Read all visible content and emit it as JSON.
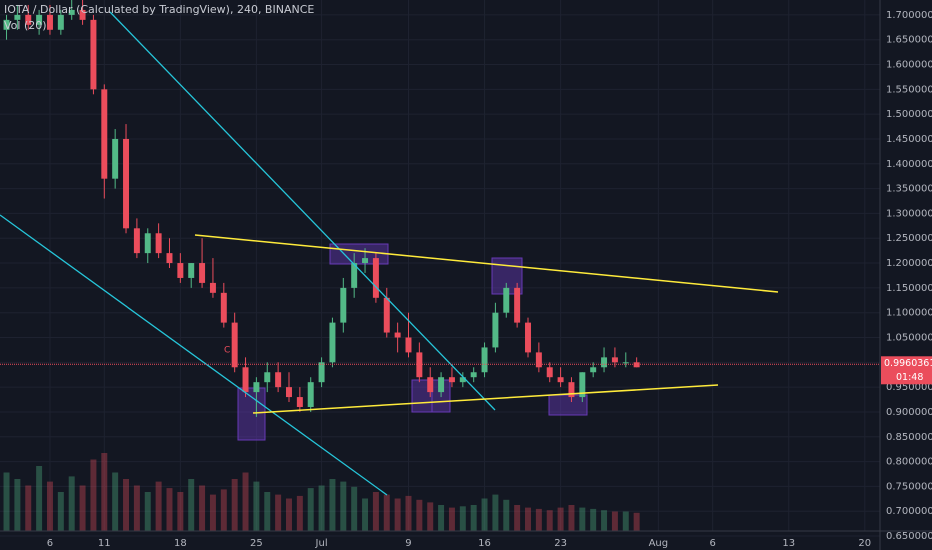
{
  "chart_data": {
    "type": "candlestick",
    "title": "IOTA / Dollar (Calculated by TradingView), 240, BINANCE",
    "volume_title": "Vol (20)",
    "up_color": "#53b987",
    "down_color": "#eb4d5c",
    "grid": true,
    "xlim": [
      0.4,
      81.4
    ],
    "ylim": [
      0.64,
      1.73
    ],
    "volume_ylim": [
      0,
      100
    ],
    "xticks": [
      {
        "value": 5,
        "label": "6"
      },
      {
        "value": 10,
        "label": "11"
      },
      {
        "value": 17,
        "label": "18"
      },
      {
        "value": 24,
        "label": "25"
      },
      {
        "value": 30,
        "label": "Jul"
      },
      {
        "value": 38,
        "label": "9"
      },
      {
        "value": 45,
        "label": "16"
      },
      {
        "value": 52,
        "label": "23"
      },
      {
        "value": 61,
        "label": "Aug"
      },
      {
        "value": 66,
        "label": "6"
      },
      {
        "value": 73,
        "label": "13"
      },
      {
        "value": 80,
        "label": "20"
      }
    ],
    "yticks": [
      {
        "value": 0.65,
        "label": "0.65000000"
      },
      {
        "value": 0.7,
        "label": "0.70000000"
      },
      {
        "value": 0.75,
        "label": "0.75000000"
      },
      {
        "value": 0.8,
        "label": "0.80000000"
      },
      {
        "value": 0.85,
        "label": "0.85000000"
      },
      {
        "value": 0.9,
        "label": "0.90000000"
      },
      {
        "value": 0.95,
        "label": "0.95000000"
      },
      {
        "value": 1.0,
        "label": "1.00000000"
      },
      {
        "value": 1.05,
        "label": "1.05000000"
      },
      {
        "value": 1.1,
        "label": "1.10000000"
      },
      {
        "value": 1.15,
        "label": "1.15000000"
      },
      {
        "value": 1.2,
        "label": "1.20000000"
      },
      {
        "value": 1.25,
        "label": "1.25000000"
      },
      {
        "value": 1.3,
        "label": "1.30000000"
      },
      {
        "value": 1.35,
        "label": "1.35000000"
      },
      {
        "value": 1.4,
        "label": "1.40000000"
      },
      {
        "value": 1.45,
        "label": "1.45000000"
      },
      {
        "value": 1.5,
        "label": "1.50000000"
      },
      {
        "value": 1.55,
        "label": "1.55000000"
      },
      {
        "value": 1.6,
        "label": "1.60000000"
      },
      {
        "value": 1.65,
        "label": "1.65000000"
      },
      {
        "value": 1.7,
        "label": "1.70000000"
      }
    ],
    "x": [
      1,
      2,
      3,
      4,
      5,
      6,
      7,
      8,
      9,
      10,
      11,
      12,
      13,
      14,
      15,
      16,
      17,
      18,
      19,
      20,
      21,
      22,
      23,
      24,
      25,
      26,
      27,
      28,
      29,
      30,
      31,
      32,
      33,
      34,
      35,
      36,
      37,
      38,
      39,
      40,
      41,
      42,
      43,
      44,
      45,
      46,
      47,
      48,
      49,
      50,
      51,
      52,
      53,
      54,
      55,
      56,
      57,
      58,
      59
    ],
    "open": [
      1.67,
      1.69,
      1.7,
      1.68,
      1.7,
      1.67,
      1.7,
      1.71,
      1.69,
      1.55,
      1.37,
      1.45,
      1.27,
      1.22,
      1.26,
      1.22,
      1.2,
      1.17,
      1.2,
      1.16,
      1.14,
      1.08,
      0.99,
      0.94,
      0.96,
      0.98,
      0.95,
      0.93,
      0.91,
      0.96,
      1.0,
      1.08,
      1.15,
      1.2,
      1.21,
      1.13,
      1.06,
      1.05,
      1.02,
      0.97,
      0.94,
      0.97,
      0.96,
      0.97,
      0.98,
      1.03,
      1.1,
      1.15,
      1.08,
      1.02,
      0.99,
      0.97,
      0.96,
      0.93,
      0.98,
      0.99,
      1.01,
      1.0,
      1.0
    ],
    "high": [
      1.7,
      1.72,
      1.72,
      1.71,
      1.72,
      1.71,
      1.73,
      1.73,
      1.7,
      1.56,
      1.47,
      1.48,
      1.29,
      1.27,
      1.28,
      1.25,
      1.22,
      1.2,
      1.25,
      1.21,
      1.16,
      1.1,
      1.01,
      0.97,
      1.0,
      1.0,
      0.98,
      0.95,
      0.97,
      1.01,
      1.09,
      1.17,
      1.22,
      1.23,
      1.22,
      1.15,
      1.08,
      1.1,
      1.04,
      0.99,
      0.98,
      0.99,
      0.98,
      0.99,
      1.04,
      1.12,
      1.16,
      1.16,
      1.09,
      1.04,
      1.0,
      0.99,
      0.97,
      0.98,
      1.0,
      1.03,
      1.03,
      1.02,
      1.01
    ],
    "low": [
      1.65,
      1.67,
      1.67,
      1.66,
      1.66,
      1.66,
      1.69,
      1.68,
      1.54,
      1.33,
      1.35,
      1.26,
      1.21,
      1.2,
      1.21,
      1.19,
      1.16,
      1.15,
      1.15,
      1.13,
      1.07,
      0.98,
      0.93,
      0.89,
      0.94,
      0.94,
      0.92,
      0.9,
      0.9,
      0.95,
      0.99,
      1.06,
      1.13,
      1.18,
      1.12,
      1.05,
      1.02,
      1.01,
      0.96,
      0.93,
      0.93,
      0.95,
      0.95,
      0.96,
      0.97,
      1.02,
      1.09,
      1.07,
      1.01,
      0.98,
      0.96,
      0.95,
      0.92,
      0.92,
      0.97,
      0.98,
      0.99,
      0.99,
      0.99
    ],
    "close": [
      1.69,
      1.7,
      1.68,
      1.7,
      1.67,
      1.7,
      1.71,
      1.69,
      1.55,
      1.37,
      1.45,
      1.27,
      1.22,
      1.26,
      1.22,
      1.2,
      1.17,
      1.2,
      1.16,
      1.14,
      1.08,
      0.99,
      0.94,
      0.96,
      0.98,
      0.95,
      0.93,
      0.91,
      0.96,
      1.0,
      1.08,
      1.15,
      1.2,
      1.21,
      1.13,
      1.06,
      1.05,
      1.02,
      0.97,
      0.94,
      0.97,
      0.96,
      0.97,
      0.98,
      1.03,
      1.1,
      1.15,
      1.08,
      1.02,
      0.99,
      0.97,
      0.96,
      0.93,
      0.98,
      0.99,
      1.01,
      1.0,
      1.0,
      0.99
    ],
    "volume": [
      45,
      40,
      35,
      50,
      38,
      30,
      42,
      35,
      55,
      60,
      45,
      40,
      35,
      30,
      38,
      33,
      30,
      40,
      35,
      28,
      32,
      40,
      45,
      38,
      30,
      28,
      25,
      27,
      33,
      35,
      40,
      38,
      34,
      25,
      30,
      28,
      25,
      27,
      24,
      22,
      20,
      18,
      19,
      20,
      25,
      28,
      24,
      20,
      18,
      17,
      16,
      18,
      20,
      18,
      17,
      16,
      15,
      15,
      14
    ],
    "last_price": 0.99603615,
    "countdown": "01:48",
    "annotation": "C"
  }
}
